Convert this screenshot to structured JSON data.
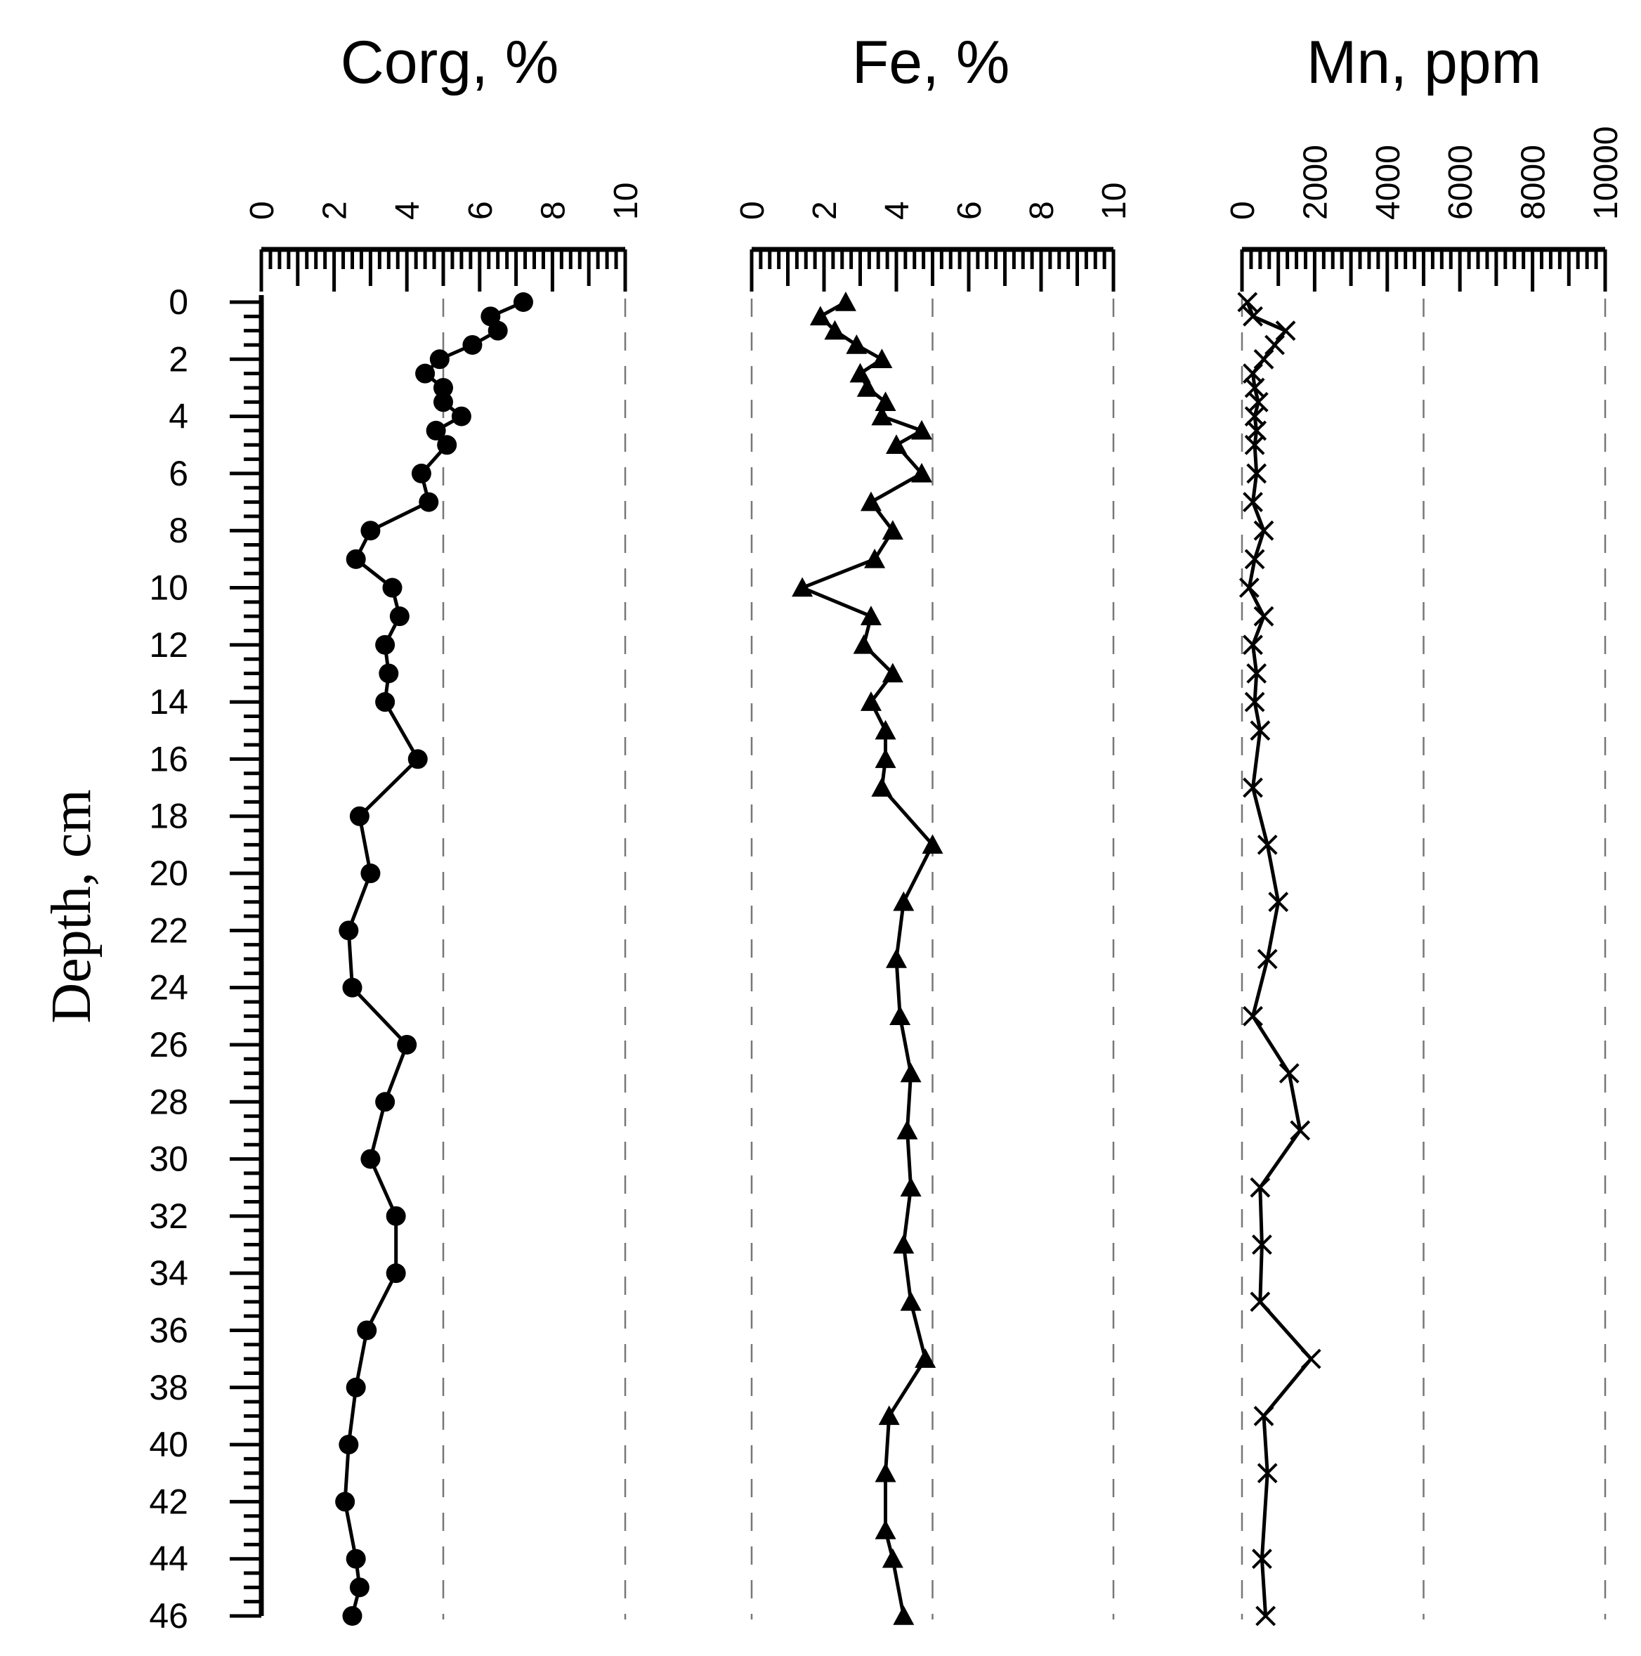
{
  "chart_data": {
    "type": "line",
    "orientation": "depth-profile",
    "ylabel": "Depth, cm",
    "ylim": [
      0,
      46
    ],
    "yticks": [
      "0",
      "2",
      "4",
      "6",
      "8",
      "10",
      "12",
      "14",
      "16",
      "18",
      "20",
      "22",
      "24",
      "26",
      "28",
      "30",
      "32",
      "34",
      "36",
      "38",
      "40",
      "42",
      "44",
      "46"
    ],
    "panels": [
      {
        "title": "Corg, %",
        "xlim": [
          0,
          10
        ],
        "xticks": [
          "0",
          "2",
          "4",
          "6",
          "8",
          "10"
        ],
        "gridlines": [
          5,
          10
        ],
        "marker": "circle",
        "depth": [
          0,
          0.5,
          1,
          1.5,
          2,
          2.5,
          3,
          3.5,
          4,
          4.5,
          5,
          6,
          7,
          8,
          9,
          10,
          11,
          12,
          13,
          14,
          16,
          18,
          20,
          22,
          24,
          26,
          28,
          30,
          32,
          34,
          36,
          38,
          40,
          42,
          44,
          45,
          46
        ],
        "values": [
          7.2,
          6.3,
          6.5,
          5.8,
          4.9,
          4.5,
          5.0,
          5.0,
          5.5,
          4.8,
          5.1,
          4.4,
          4.6,
          3.0,
          2.6,
          3.6,
          3.8,
          3.4,
          3.5,
          3.4,
          4.3,
          2.7,
          3.0,
          2.4,
          2.5,
          4.0,
          3.4,
          3.0,
          3.7,
          3.7,
          2.9,
          2.6,
          2.4,
          2.3,
          2.6,
          2.7,
          2.5
        ]
      },
      {
        "title": "Fe, %",
        "xlim": [
          0,
          10
        ],
        "xticks": [
          "0",
          "2",
          "4",
          "6",
          "8",
          "10"
        ],
        "gridlines": [
          0,
          5,
          10
        ],
        "marker": "triangle",
        "depth": [
          0,
          0.5,
          1,
          1.5,
          2,
          2.5,
          3,
          3.5,
          4,
          4.5,
          5,
          6,
          7,
          8,
          9,
          10,
          11,
          12,
          13,
          14,
          15,
          16,
          17,
          19,
          21,
          23,
          25,
          27,
          29,
          31,
          33,
          35,
          37,
          39,
          41,
          43,
          44,
          46
        ],
        "values": [
          2.6,
          1.9,
          2.3,
          2.9,
          3.6,
          3.0,
          3.2,
          3.7,
          3.6,
          4.7,
          4.0,
          4.7,
          3.3,
          3.9,
          3.4,
          1.4,
          3.3,
          3.1,
          3.9,
          3.3,
          3.7,
          3.7,
          3.6,
          5.0,
          4.2,
          4.0,
          4.1,
          4.4,
          4.3,
          4.4,
          4.2,
          4.4,
          4.8,
          3.8,
          3.7,
          3.7,
          3.9,
          4.2
        ]
      },
      {
        "title": "Mn, ppm",
        "xlim": [
          0,
          10000
        ],
        "xticks": [
          "0",
          "2000",
          "4000",
          "6000",
          "8000",
          "10000"
        ],
        "gridlines": [
          0,
          5000,
          10000
        ],
        "marker": "x",
        "depth": [
          0,
          0.5,
          1,
          1.5,
          2,
          2.5,
          3,
          3.5,
          4,
          4.5,
          5,
          6,
          7,
          8,
          9,
          10,
          11,
          12,
          13,
          14,
          15,
          17,
          19,
          21,
          23,
          25,
          27,
          29,
          31,
          33,
          35,
          37,
          39,
          41,
          44,
          46
        ],
        "values": [
          150,
          300,
          1200,
          900,
          600,
          300,
          350,
          450,
          350,
          400,
          350,
          400,
          300,
          600,
          350,
          200,
          600,
          300,
          400,
          350,
          500,
          300,
          700,
          1000,
          700,
          300,
          1300,
          1600,
          500,
          550,
          500,
          1900,
          600,
          700,
          550,
          650
        ]
      }
    ]
  }
}
